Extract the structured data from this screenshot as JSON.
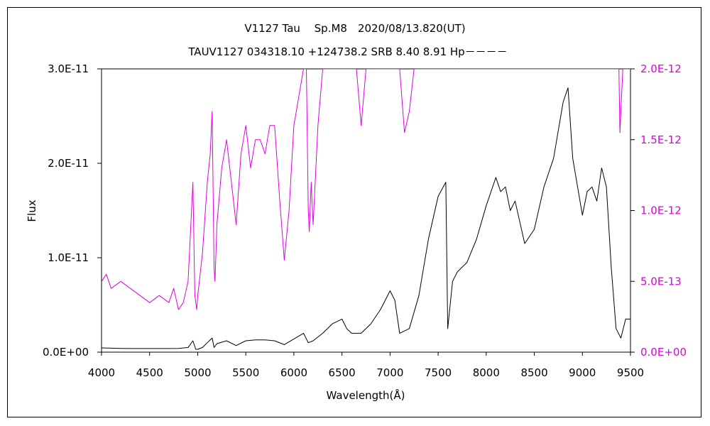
{
  "chart_data": {
    "type": "line",
    "title": "V1127 Tau　 Sp.M8　2020/08/13.820(UT)",
    "subtitle": "TAUV1127 034318.10 +124738.2 SRB 8.40 8.91 Hp－－－－",
    "xlabel": "Wavelength(Å)",
    "ylabel": "Flux",
    "xlim": [
      4000,
      9500
    ],
    "ylim_left": [
      0,
      3e-11
    ],
    "ylim_right": [
      0,
      2e-12
    ],
    "x_ticks": [
      "4000",
      "4500",
      "5000",
      "5500",
      "6000",
      "6500",
      "7000",
      "7500",
      "8000",
      "8500",
      "9000",
      "9500"
    ],
    "y_ticks_left": [
      "0.0E+00",
      "1.0E-11",
      "2.0E-11",
      "3.0E-11"
    ],
    "y_ticks_right": [
      "0.0E+00",
      "5.0E-13",
      "1.0E-12",
      "1.5E-12",
      "2.0E-12"
    ],
    "colors": {
      "series_main": "#000000",
      "series_scaled": "#e000e0",
      "frame": "#000000"
    },
    "series": [
      {
        "axis": "left",
        "x": [
          4000,
          4100,
          4200,
          4300,
          4400,
          4500,
          4600,
          4700,
          4800,
          4900,
          4950,
          4980,
          5000,
          5050,
          5100,
          5150,
          5170,
          5200,
          5300,
          5400,
          5500,
          5600,
          5700,
          5800,
          5900,
          6000,
          6100,
          6150,
          6200,
          6300,
          6400,
          6500,
          6550,
          6600,
          6700,
          6800,
          6900,
          7000,
          7050,
          7100,
          7200,
          7300,
          7400,
          7500,
          7580,
          7600,
          7650,
          7700,
          7800,
          7900,
          8000,
          8100,
          8150,
          8200,
          8250,
          8300,
          8400,
          8500,
          8600,
          8700,
          8800,
          8850,
          8900,
          9000,
          9050,
          9100,
          9150,
          9200,
          9250,
          9300,
          9350,
          9400,
          9450,
          9500
        ],
        "y": [
          4.5e-13,
          4.2e-13,
          4e-13,
          3.8e-13,
          3.8e-13,
          3.8e-13,
          3.8e-13,
          3.8e-13,
          4e-13,
          5e-13,
          1.2e-12,
          3e-13,
          3e-13,
          5e-13,
          1e-12,
          1.5e-12,
          5e-13,
          9e-13,
          1.2e-12,
          7e-13,
          1.2e-12,
          1.3e-12,
          1.3e-12,
          1.2e-12,
          8e-13,
          1.4e-12,
          2e-12,
          1e-12,
          1.2e-12,
          2e-12,
          3e-12,
          3.5e-12,
          2.5e-12,
          2e-12,
          2e-12,
          3e-12,
          4.5e-12,
          6.5e-12,
          5.5e-12,
          2e-12,
          2.5e-12,
          6e-12,
          1.2e-11,
          1.65e-11,
          1.8e-11,
          2.5e-12,
          7.5e-12,
          8.5e-12,
          9.5e-12,
          1.2e-11,
          1.55e-11,
          1.85e-11,
          1.7e-11,
          1.75e-11,
          1.5e-11,
          1.6e-11,
          1.15e-11,
          1.3e-11,
          1.75e-11,
          2.05e-11,
          2.65e-11,
          2.8e-11,
          2.05e-11,
          1.45e-11,
          1.7e-11,
          1.75e-11,
          1.6e-11,
          1.95e-11,
          1.75e-11,
          9e-12,
          2.5e-12,
          1.5e-12,
          3.5e-12,
          3.5e-12
        ]
      },
      {
        "axis": "right",
        "x": [
          4000,
          4050,
          4100,
          4200,
          4300,
          4400,
          4500,
          4600,
          4700,
          4750,
          4800,
          4850,
          4900,
          4950,
          4970,
          4990,
          5000,
          5050,
          5100,
          5130,
          5150,
          5170,
          5180,
          5200,
          5250,
          5300,
          5350,
          5400,
          5450,
          5500,
          5550,
          5600,
          5650,
          5700,
          5750,
          5800,
          5850,
          5900,
          5950,
          6000,
          6050,
          6100,
          6130,
          6150,
          6160,
          6180,
          6200,
          6250,
          6300,
          6350,
          6400,
          6450,
          6500,
          6600,
          6650,
          6700,
          6750,
          6800,
          6900,
          7000,
          7050,
          7100,
          7150,
          7200,
          7250,
          7300,
          7400,
          7500,
          7600,
          7700,
          7800,
          8000,
          8500,
          9000,
          9300,
          9380,
          9390,
          9420,
          9450,
          9500
        ],
        "y": [
          5e-13,
          5.5e-13,
          4.5e-13,
          5e-13,
          4.5e-13,
          4e-13,
          3.5e-13,
          4e-13,
          3.5e-13,
          4.5e-13,
          3e-13,
          3.5e-13,
          5e-13,
          1.2e-12,
          4e-13,
          3e-13,
          4e-13,
          7e-13,
          1.2e-12,
          1.4e-12,
          1.7e-12,
          6e-13,
          5e-13,
          9e-13,
          1.3e-12,
          1.5e-12,
          1.2e-12,
          9e-13,
          1.4e-12,
          1.6e-12,
          1.3e-12,
          1.5e-12,
          1.5e-12,
          1.4e-12,
          1.6e-12,
          1.6e-12,
          1.1e-12,
          6.5e-13,
          1e-12,
          1.6e-12,
          1.8e-12,
          2e-12,
          2e-12,
          1e-12,
          8.5e-13,
          1.2e-12,
          9e-13,
          1.6e-12,
          2e-12,
          2e-12,
          2e-12,
          2e-12,
          2e-12,
          2e-12,
          2e-12,
          1.6e-12,
          2e-12,
          2e-12,
          2e-12,
          2e-12,
          2e-12,
          2e-12,
          1.55e-12,
          1.7e-12,
          2e-12,
          2e-12,
          2e-12,
          2e-12,
          2e-12,
          2e-12,
          2e-12,
          2e-12,
          2e-12,
          2e-12,
          2e-12,
          2e-12,
          1.55e-12,
          2e-12,
          2e-12,
          2e-12
        ]
      }
    ]
  }
}
